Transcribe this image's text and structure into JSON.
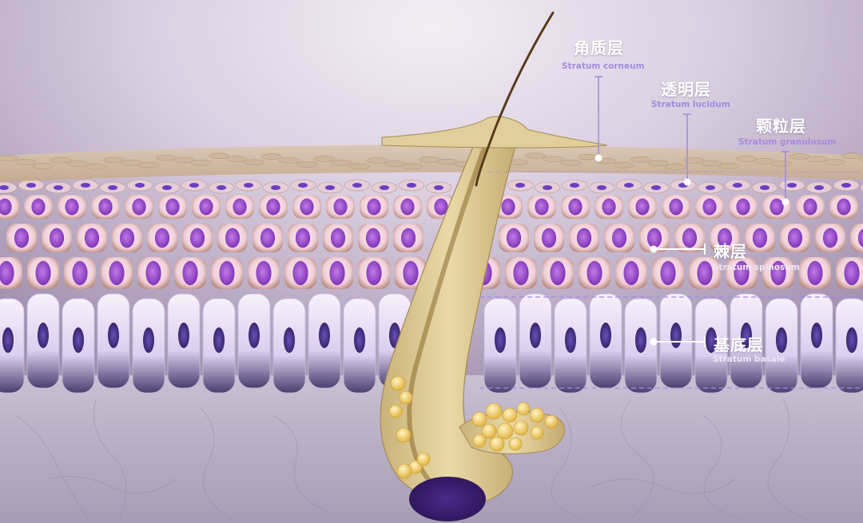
{
  "layers": {
    "corneum": {
      "name_cn": "角质层",
      "name_en": "Stratum corneum"
    },
    "lucidum": {
      "name_cn": "透明层",
      "name_en": "Stratum lucidum"
    },
    "granulosum": {
      "name_cn": "颗粒层",
      "name_en": "Stratum granulosum"
    },
    "spinosum": {
      "name_cn": "棘层",
      "name_en": "Stratum spinosum"
    },
    "basale": {
      "name_cn": "基底层",
      "name_en": "Stratum basale"
    }
  },
  "colors": {
    "background_top": "#e9e3ee",
    "background_glow": "#cdbfd9",
    "corneum": "#d8c2a8",
    "cell_body": "#f3d9e2",
    "nucleus": "#8a3fc4",
    "basal_cell": "#f4ecf8",
    "basal_nucleus": "#3d2a7a",
    "dermis": "#b9b0c4",
    "hair_follicle": "#d8c48f",
    "hair_shaft": "#6b4a22",
    "sebaceous_gland": "#f1d27a",
    "leader_line": "#a58be0"
  }
}
